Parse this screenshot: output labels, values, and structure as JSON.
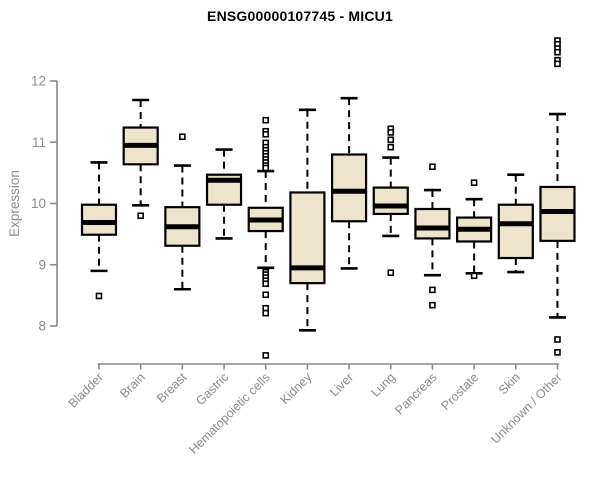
{
  "title": "ENSG00000107745 - MICU1",
  "colors": {
    "box_fill": "#ece5cb",
    "box_border": "#000000",
    "median": "#000000",
    "whisker": "#000000",
    "outlier": "#000000",
    "axis": "#898989",
    "tick_label": "#8c8c8c",
    "title_color": "#000000",
    "background": "#ffffff"
  },
  "chart_data": {
    "type": "boxplot",
    "title": "ENSG00000107745 - MICU1",
    "xlabel": "",
    "ylabel": "Expression",
    "y_ticks": [
      8,
      9,
      10,
      11,
      12
    ],
    "ylim": [
      7.3,
      12.8
    ],
    "grid": false,
    "legend": false,
    "categories": [
      "Bladder",
      "Brain",
      "Breast",
      "Gastric",
      "Hematopoietic cells",
      "Kidney",
      "Liver",
      "Lung",
      "Pancreas",
      "Prostate",
      "Skin",
      "Unknown / Other"
    ],
    "boxes": [
      {
        "name": "Bladder",
        "low": 8.9,
        "q1": 9.49,
        "median": 9.69,
        "q3": 9.98,
        "high": 10.67,
        "outliers": [
          8.49
        ]
      },
      {
        "name": "Brain",
        "low": 9.97,
        "q1": 10.64,
        "median": 10.95,
        "q3": 11.24,
        "high": 11.69,
        "outliers": [
          9.8
        ]
      },
      {
        "name": "Breast",
        "low": 8.6,
        "q1": 9.31,
        "median": 9.62,
        "q3": 9.94,
        "high": 10.62,
        "outliers": [
          11.09
        ]
      },
      {
        "name": "Gastric",
        "low": 9.43,
        "q1": 9.98,
        "median": 10.38,
        "q3": 10.47,
        "high": 10.88,
        "outliers": []
      },
      {
        "name": "Hematopoietic cells",
        "low": 8.95,
        "q1": 9.55,
        "median": 9.73,
        "q3": 9.93,
        "high": 10.53,
        "outliers": [
          11.36,
          11.18,
          11.13,
          10.99,
          10.92,
          10.87,
          10.82,
          10.77,
          10.72,
          10.67,
          10.62,
          10.58,
          8.88,
          8.84,
          8.79,
          8.74,
          8.69,
          8.51,
          8.29,
          8.21,
          7.52
        ]
      },
      {
        "name": "Kidney",
        "low": 7.93,
        "q1": 8.7,
        "median": 8.95,
        "q3": 10.18,
        "high": 11.53,
        "outliers": []
      },
      {
        "name": "Liver",
        "low": 8.94,
        "q1": 9.71,
        "median": 10.2,
        "q3": 10.8,
        "high": 11.72,
        "outliers": []
      },
      {
        "name": "Lung",
        "low": 9.47,
        "q1": 9.83,
        "median": 9.96,
        "q3": 10.26,
        "high": 10.75,
        "outliers": [
          11.22,
          11.16,
          11.04,
          10.92,
          8.87
        ]
      },
      {
        "name": "Pancreas",
        "low": 8.83,
        "q1": 9.43,
        "median": 9.6,
        "q3": 9.91,
        "high": 10.22,
        "outliers": [
          10.6,
          8.59,
          8.34
        ]
      },
      {
        "name": "Prostate",
        "low": 8.86,
        "q1": 9.38,
        "median": 9.58,
        "q3": 9.77,
        "high": 10.07,
        "outliers": [
          10.34,
          8.82
        ]
      },
      {
        "name": "Skin",
        "low": 8.88,
        "q1": 9.11,
        "median": 9.67,
        "q3": 9.98,
        "high": 10.47,
        "outliers": []
      },
      {
        "name": "Unknown / Other",
        "low": 8.14,
        "q1": 9.39,
        "median": 9.87,
        "q3": 10.27,
        "high": 11.46,
        "outliers": [
          12.66,
          12.6,
          12.53,
          12.47,
          12.34,
          12.28,
          7.78,
          7.57
        ]
      }
    ]
  }
}
